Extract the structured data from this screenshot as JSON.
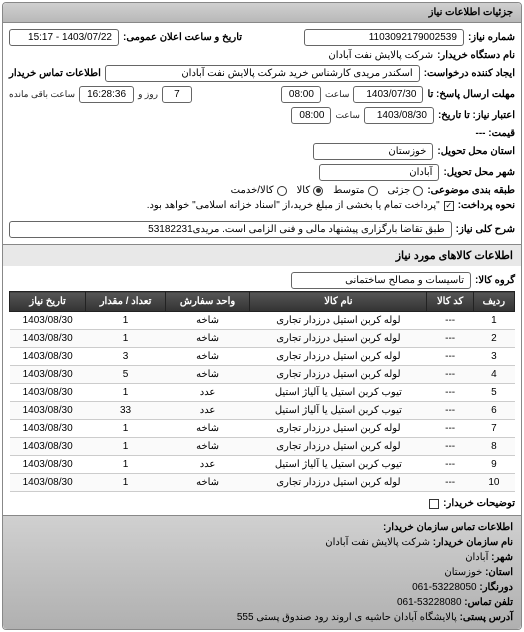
{
  "header": {
    "title": "جزئیات اطلاعات نیاز"
  },
  "fields": {
    "requestNo": {
      "label": "شماره نیاز:",
      "value": "1103092179002539"
    },
    "announceDate": {
      "label": "تاریخ و ساعت اعلان عمومی:",
      "value": "1403/07/22 - 15:17"
    },
    "buyerName": {
      "label": "نام دستگاه خریدار:",
      "value": "شرکت پالایش نفت آبادان"
    },
    "requester": {
      "label": "ایجاد کننده درخواست:",
      "value": "اسکندر مریدی کارشناس خرید شرکت پالایش نفت آبادان"
    },
    "buyerContact": {
      "label": "اطلاعات تماس خریدار"
    },
    "responseDeadline": {
      "label": "مهلت ارسال پاسخ: تا",
      "date": "1403/07/30",
      "timeLabel": "ساعت",
      "time": "08:00",
      "remainDays": "7",
      "remainDaysLabel": "روز و",
      "remainTime": "16:28:36",
      "remainTimeLabel": "ساعت باقی مانده"
    },
    "validUntil": {
      "label": "اعتبار نیاز: تا تاریخ:",
      "date": "1403/08/30",
      "timeLabel": "ساعت",
      "time": "08:00"
    },
    "price": {
      "label": "قیمت: ---"
    },
    "province": {
      "label": "استان محل تحویل:",
      "value": "خوزستان"
    },
    "city": {
      "label": "شهر محل تحویل:",
      "value": "آبادان"
    },
    "category": {
      "label": "طبقه بندی موضوعی:",
      "options": [
        {
          "label": "جزئی",
          "selected": false
        },
        {
          "label": "متوسط",
          "selected": false
        },
        {
          "label": "کالا",
          "selected": true
        },
        {
          "label": "کالا/خدمت",
          "selected": false
        }
      ]
    },
    "payment": {
      "label": "نحوه پرداخت:",
      "value": "\"پرداخت تمام یا بخشی از مبلغ خرید،از \"اسناد خزانه اسلامی\" خواهد بود."
    },
    "description": {
      "label": "شرح کلی نیاز:",
      "value": "طبق تقاضا بارگزاری پیشنهاد مالی و فنی الزامی است. مریدی53182231"
    }
  },
  "goods": {
    "sectionTitle": "اطلاعات کالاهای مورد نیاز",
    "groupLabel": "گروه کالا:",
    "groupValue": "تاسیسات و مصالح ساختمانی",
    "columns": [
      "ردیف",
      "کد کالا",
      "نام کالا",
      "واحد سفارش",
      "تعداد / مقدار",
      "تاریخ نیاز"
    ],
    "rows": [
      [
        "1",
        "---",
        "لوله کربن استیل درزدار تجاری",
        "شاخه",
        "1",
        "1403/08/30"
      ],
      [
        "2",
        "---",
        "لوله کربن استیل درزدار تجاری",
        "شاخه",
        "1",
        "1403/08/30"
      ],
      [
        "3",
        "---",
        "لوله کربن استیل درزدار تجاری",
        "شاخه",
        "3",
        "1403/08/30"
      ],
      [
        "4",
        "---",
        "لوله کربن استیل درزدار تجاری",
        "شاخه",
        "5",
        "1403/08/30"
      ],
      [
        "5",
        "---",
        "تیوب کربن استیل یا آلیاژ استیل",
        "عدد",
        "1",
        "1403/08/30"
      ],
      [
        "6",
        "---",
        "تیوب کربن استیل یا آلیاژ استیل",
        "عدد",
        "33",
        "1403/08/30"
      ],
      [
        "7",
        "---",
        "لوله کربن استیل درزدار تجاری",
        "شاخه",
        "1",
        "1403/08/30"
      ],
      [
        "8",
        "---",
        "لوله کربن استیل درزدار تجاری",
        "شاخه",
        "1",
        "1403/08/30"
      ],
      [
        "9",
        "---",
        "تیوب کربن استیل یا آلیاژ استیل",
        "عدد",
        "1",
        "1403/08/30"
      ],
      [
        "10",
        "---",
        "لوله کربن استیل درزدار تجاری",
        "شاخه",
        "1",
        "1403/08/30"
      ]
    ]
  },
  "buyerNotes": {
    "label": "توضیحات خریدار:"
  },
  "footer": {
    "title": "اطلاعات تماس سازمان خریدار:",
    "org": {
      "label": "نام سازمان خریدار:",
      "value": "شرکت پالایش نفت آبادان"
    },
    "city": {
      "label": "شهر:",
      "value": "آبادان"
    },
    "province": {
      "label": "استان:",
      "value": "خوزستان"
    },
    "fax": {
      "label": "دورنگار:",
      "value": "53228050-061"
    },
    "phone": {
      "label": "تلفن تماس:",
      "value": "53228080-061"
    },
    "address": {
      "label": "آدرس پستی:",
      "value": "پالایشگاه آبادان حاشیه ی اروند رود صندوق پستی 555"
    }
  }
}
